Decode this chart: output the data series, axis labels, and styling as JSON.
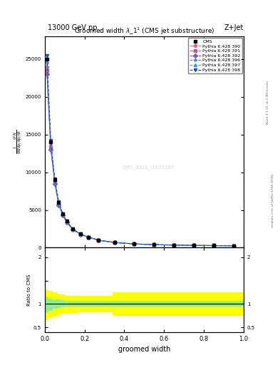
{
  "title_top": "13000 GeV pp",
  "title_right": "Z+Jet",
  "plot_title": "Groomed width $\\lambda$_1$^1$ (CMS jet substructure)",
  "ylabel_ratio": "Ratio to CMS",
  "xlabel": "groomed width",
  "watermark": "CMS_2021_I1920187",
  "right_label": "mcplots.cern.ch [arXiv:1306.3436]",
  "rivet_label": "Rivet 3.1.10, ≥ 2.4M events",
  "x": [
    0.01,
    0.03,
    0.05,
    0.07,
    0.09,
    0.11,
    0.14,
    0.18,
    0.22,
    0.27,
    0.35,
    0.45,
    0.55,
    0.65,
    0.75,
    0.85,
    0.95
  ],
  "cms_y": [
    25000,
    14000,
    9000,
    6000,
    4500,
    3500,
    2500,
    1800,
    1400,
    1000,
    700,
    500,
    400,
    350,
    300,
    280,
    260
  ],
  "pythia_390_y": [
    24000,
    13500,
    8700,
    5800,
    4400,
    3400,
    2450,
    1780,
    1390,
    990,
    695,
    498,
    398,
    348,
    298,
    278,
    258
  ],
  "pythia_391_y": [
    23500,
    13200,
    8600,
    5700,
    4350,
    3380,
    2420,
    1760,
    1380,
    985,
    692,
    495,
    396,
    346,
    296,
    276,
    256
  ],
  "pythia_392_y": [
    23000,
    13000,
    8500,
    5650,
    4300,
    3350,
    2400,
    1750,
    1370,
    980,
    690,
    492,
    394,
    344,
    294,
    274,
    254
  ],
  "pythia_396_y": [
    24500,
    13800,
    8800,
    5850,
    4420,
    3420,
    2460,
    1790,
    1395,
    995,
    697,
    499,
    399,
    349,
    299,
    279,
    259
  ],
  "pythia_397_y": [
    25000,
    14000,
    9000,
    6000,
    4500,
    3500,
    2500,
    1800,
    1400,
    1000,
    700,
    500,
    400,
    350,
    300,
    280,
    260
  ],
  "pythia_398_y": [
    25500,
    14200,
    9100,
    6050,
    4530,
    3520,
    2520,
    1810,
    1410,
    1005,
    702,
    502,
    402,
    352,
    302,
    282,
    262
  ],
  "ratio_x_edges": [
    0.0,
    0.02,
    0.04,
    0.06,
    0.08,
    0.1,
    0.13,
    0.17,
    0.21,
    0.26,
    0.34,
    0.44,
    0.54,
    0.64,
    0.74,
    0.84,
    0.94,
    1.0
  ],
  "green_lower": [
    0.82,
    0.86,
    0.9,
    0.92,
    0.93,
    0.94,
    0.94,
    0.94,
    0.94,
    0.94,
    0.94,
    0.94,
    0.94,
    0.94,
    0.94,
    0.94,
    0.94
  ],
  "green_upper": [
    1.15,
    1.12,
    1.1,
    1.09,
    1.08,
    1.07,
    1.07,
    1.07,
    1.07,
    1.07,
    1.07,
    1.07,
    1.07,
    1.07,
    1.07,
    1.07,
    1.07
  ],
  "yellow_lower": [
    0.65,
    0.7,
    0.74,
    0.77,
    0.79,
    0.8,
    0.81,
    0.82,
    0.82,
    0.83,
    0.75,
    0.75,
    0.75,
    0.75,
    0.75,
    0.75,
    0.75
  ],
  "yellow_upper": [
    1.3,
    1.28,
    1.25,
    1.22,
    1.2,
    1.18,
    1.18,
    1.17,
    1.17,
    1.17,
    1.25,
    1.25,
    1.25,
    1.25,
    1.25,
    1.25,
    1.25
  ],
  "colors": {
    "390": "#c87090",
    "391": "#b06080",
    "392": "#8060b0",
    "396": "#5080c0",
    "397": "#5090d0",
    "398": "#2050a0"
  },
  "linestyles": {
    "390": "-.",
    "391": "-.",
    "392": "-.",
    "396": "--",
    "397": "--",
    "398": "--"
  },
  "markers": {
    "390": "o",
    "391": "s",
    "392": "D",
    "396": "*",
    "397": "^",
    "398": "v"
  },
  "yticks_main": [
    0,
    5000,
    10000,
    15000,
    20000,
    25000
  ],
  "ytick_labels_main": [
    "0",
    "5000",
    "10000",
    "15000",
    "20000",
    "25000"
  ],
  "ylim_main": [
    0,
    28000
  ],
  "ylim_ratio": [
    0.4,
    2.2
  ],
  "xlim": [
    0.0,
    1.0
  ]
}
